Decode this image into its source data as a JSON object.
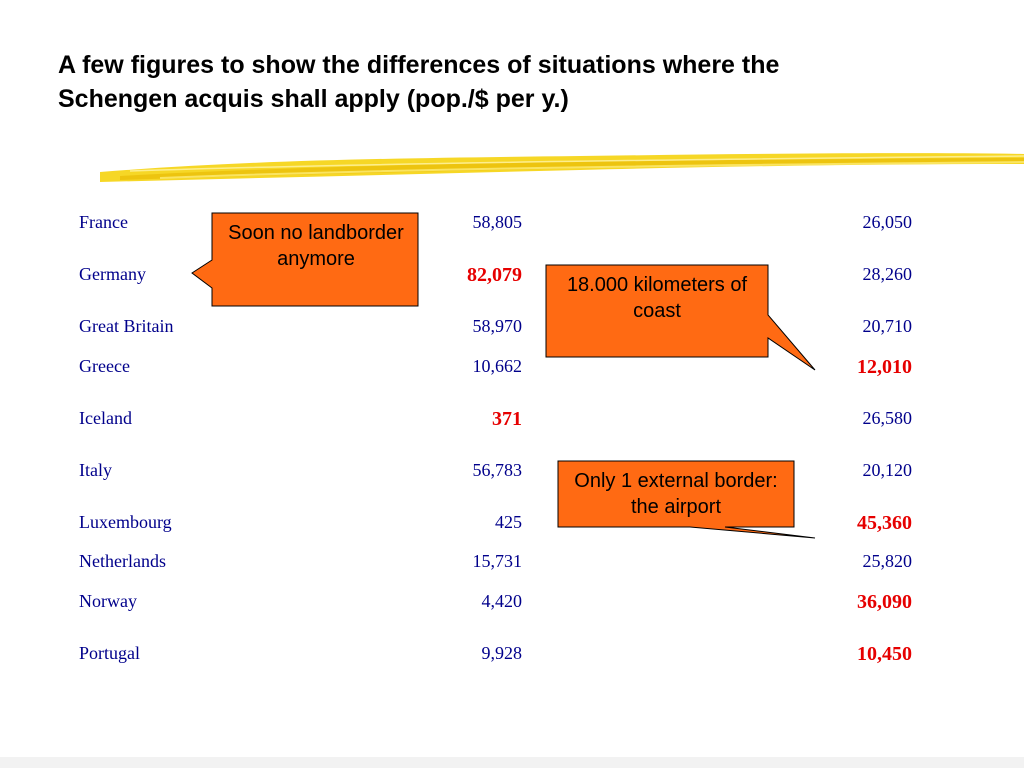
{
  "slide": {
    "title": "A few figures to show the differences of situations where the Schengen acquis shall apply (pop./$ per y.)"
  },
  "table": {
    "rows": [
      {
        "country": "France",
        "population": "58,805",
        "gdp": "26,050",
        "pop_hl": false,
        "gdp_hl": false
      },
      {
        "country": "Germany",
        "population": "82,079",
        "gdp": "28,260",
        "pop_hl": true,
        "gdp_hl": false
      },
      {
        "country": "Great Britain",
        "population": "58,970",
        "gdp": "20,710",
        "pop_hl": false,
        "gdp_hl": false
      },
      {
        "country": "Greece",
        "population": "10,662",
        "gdp": "12,010",
        "pop_hl": false,
        "gdp_hl": true
      },
      {
        "country": "Iceland",
        "population": "371",
        "gdp": "26,580",
        "pop_hl": true,
        "gdp_hl": false
      },
      {
        "country": "Italy",
        "population": "56,783",
        "gdp": "20,120",
        "pop_hl": false,
        "gdp_hl": false
      },
      {
        "country": "Luxembourg",
        "population": "425",
        "gdp": "45,360",
        "pop_hl": false,
        "gdp_hl": true
      },
      {
        "country": "Netherlands",
        "population": "15,731",
        "gdp": "25,820",
        "pop_hl": false,
        "gdp_hl": false
      },
      {
        "country": "Norway",
        "population": "4,420",
        "gdp": "36,090",
        "pop_hl": false,
        "gdp_hl": true
      },
      {
        "country": "Portugal",
        "population": "9,928",
        "gdp": "10,450",
        "pop_hl": false,
        "gdp_hl": true
      }
    ]
  },
  "callouts": {
    "landborder": "Soon no landborder anymore",
    "coast": "18.000 kilometers of coast",
    "airport": "Only 1 external border: the airport"
  },
  "colors": {
    "text": "#00008b",
    "highlight": "#e60000",
    "callout_fill": "#ff6a13",
    "underline": "#f5d000"
  },
  "icons": {
    "underline": "yellow-brush-stroke"
  }
}
